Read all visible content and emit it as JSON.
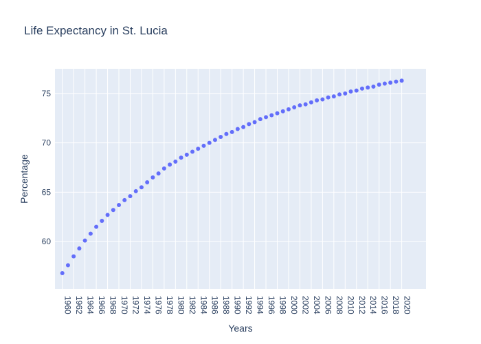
{
  "chart_data": {
    "type": "scatter",
    "title": "Life Expectancy in St. Lucia",
    "xlabel": "Years",
    "ylabel": "Percentage",
    "x": [
      1960,
      1961,
      1962,
      1963,
      1964,
      1965,
      1966,
      1967,
      1968,
      1969,
      1970,
      1971,
      1972,
      1973,
      1974,
      1975,
      1976,
      1977,
      1978,
      1979,
      1980,
      1981,
      1982,
      1983,
      1984,
      1985,
      1986,
      1987,
      1988,
      1989,
      1990,
      1991,
      1992,
      1993,
      1994,
      1995,
      1996,
      1997,
      1998,
      1999,
      2000,
      2001,
      2002,
      2003,
      2004,
      2005,
      2006,
      2007,
      2008,
      2009,
      2010,
      2011,
      2012,
      2013,
      2014,
      2015,
      2016,
      2017,
      2018,
      2019,
      2020
    ],
    "y": [
      56.8,
      57.6,
      58.5,
      59.3,
      60.1,
      60.8,
      61.5,
      62.1,
      62.7,
      63.2,
      63.7,
      64.2,
      64.6,
      65.1,
      65.5,
      66.0,
      66.5,
      66.9,
      67.4,
      67.8,
      68.1,
      68.5,
      68.8,
      69.1,
      69.4,
      69.7,
      70.0,
      70.3,
      70.6,
      70.9,
      71.1,
      71.4,
      71.6,
      71.9,
      72.1,
      72.4,
      72.6,
      72.8,
      73.0,
      73.2,
      73.4,
      73.6,
      73.8,
      73.9,
      74.1,
      74.3,
      74.4,
      74.6,
      74.7,
      74.9,
      75.0,
      75.2,
      75.3,
      75.5,
      75.6,
      75.7,
      75.9,
      76.0,
      76.1,
      76.2,
      76.3
    ],
    "xlim": [
      1958.7,
      2024.3
    ],
    "ylim": [
      55.2,
      77.5
    ],
    "xticks": [
      1960,
      1962,
      1964,
      1966,
      1968,
      1970,
      1972,
      1974,
      1976,
      1978,
      1980,
      1982,
      1984,
      1986,
      1988,
      1990,
      1992,
      1994,
      1996,
      1998,
      2000,
      2002,
      2004,
      2006,
      2008,
      2010,
      2012,
      2014,
      2016,
      2018,
      2020
    ],
    "yticks": [
      60,
      65,
      70,
      75
    ],
    "grid": true,
    "colors": {
      "marker": "#636efa",
      "plot_bg": "#e5ecf6",
      "grid": "#ffffff",
      "text": "#2a3f5f"
    }
  }
}
